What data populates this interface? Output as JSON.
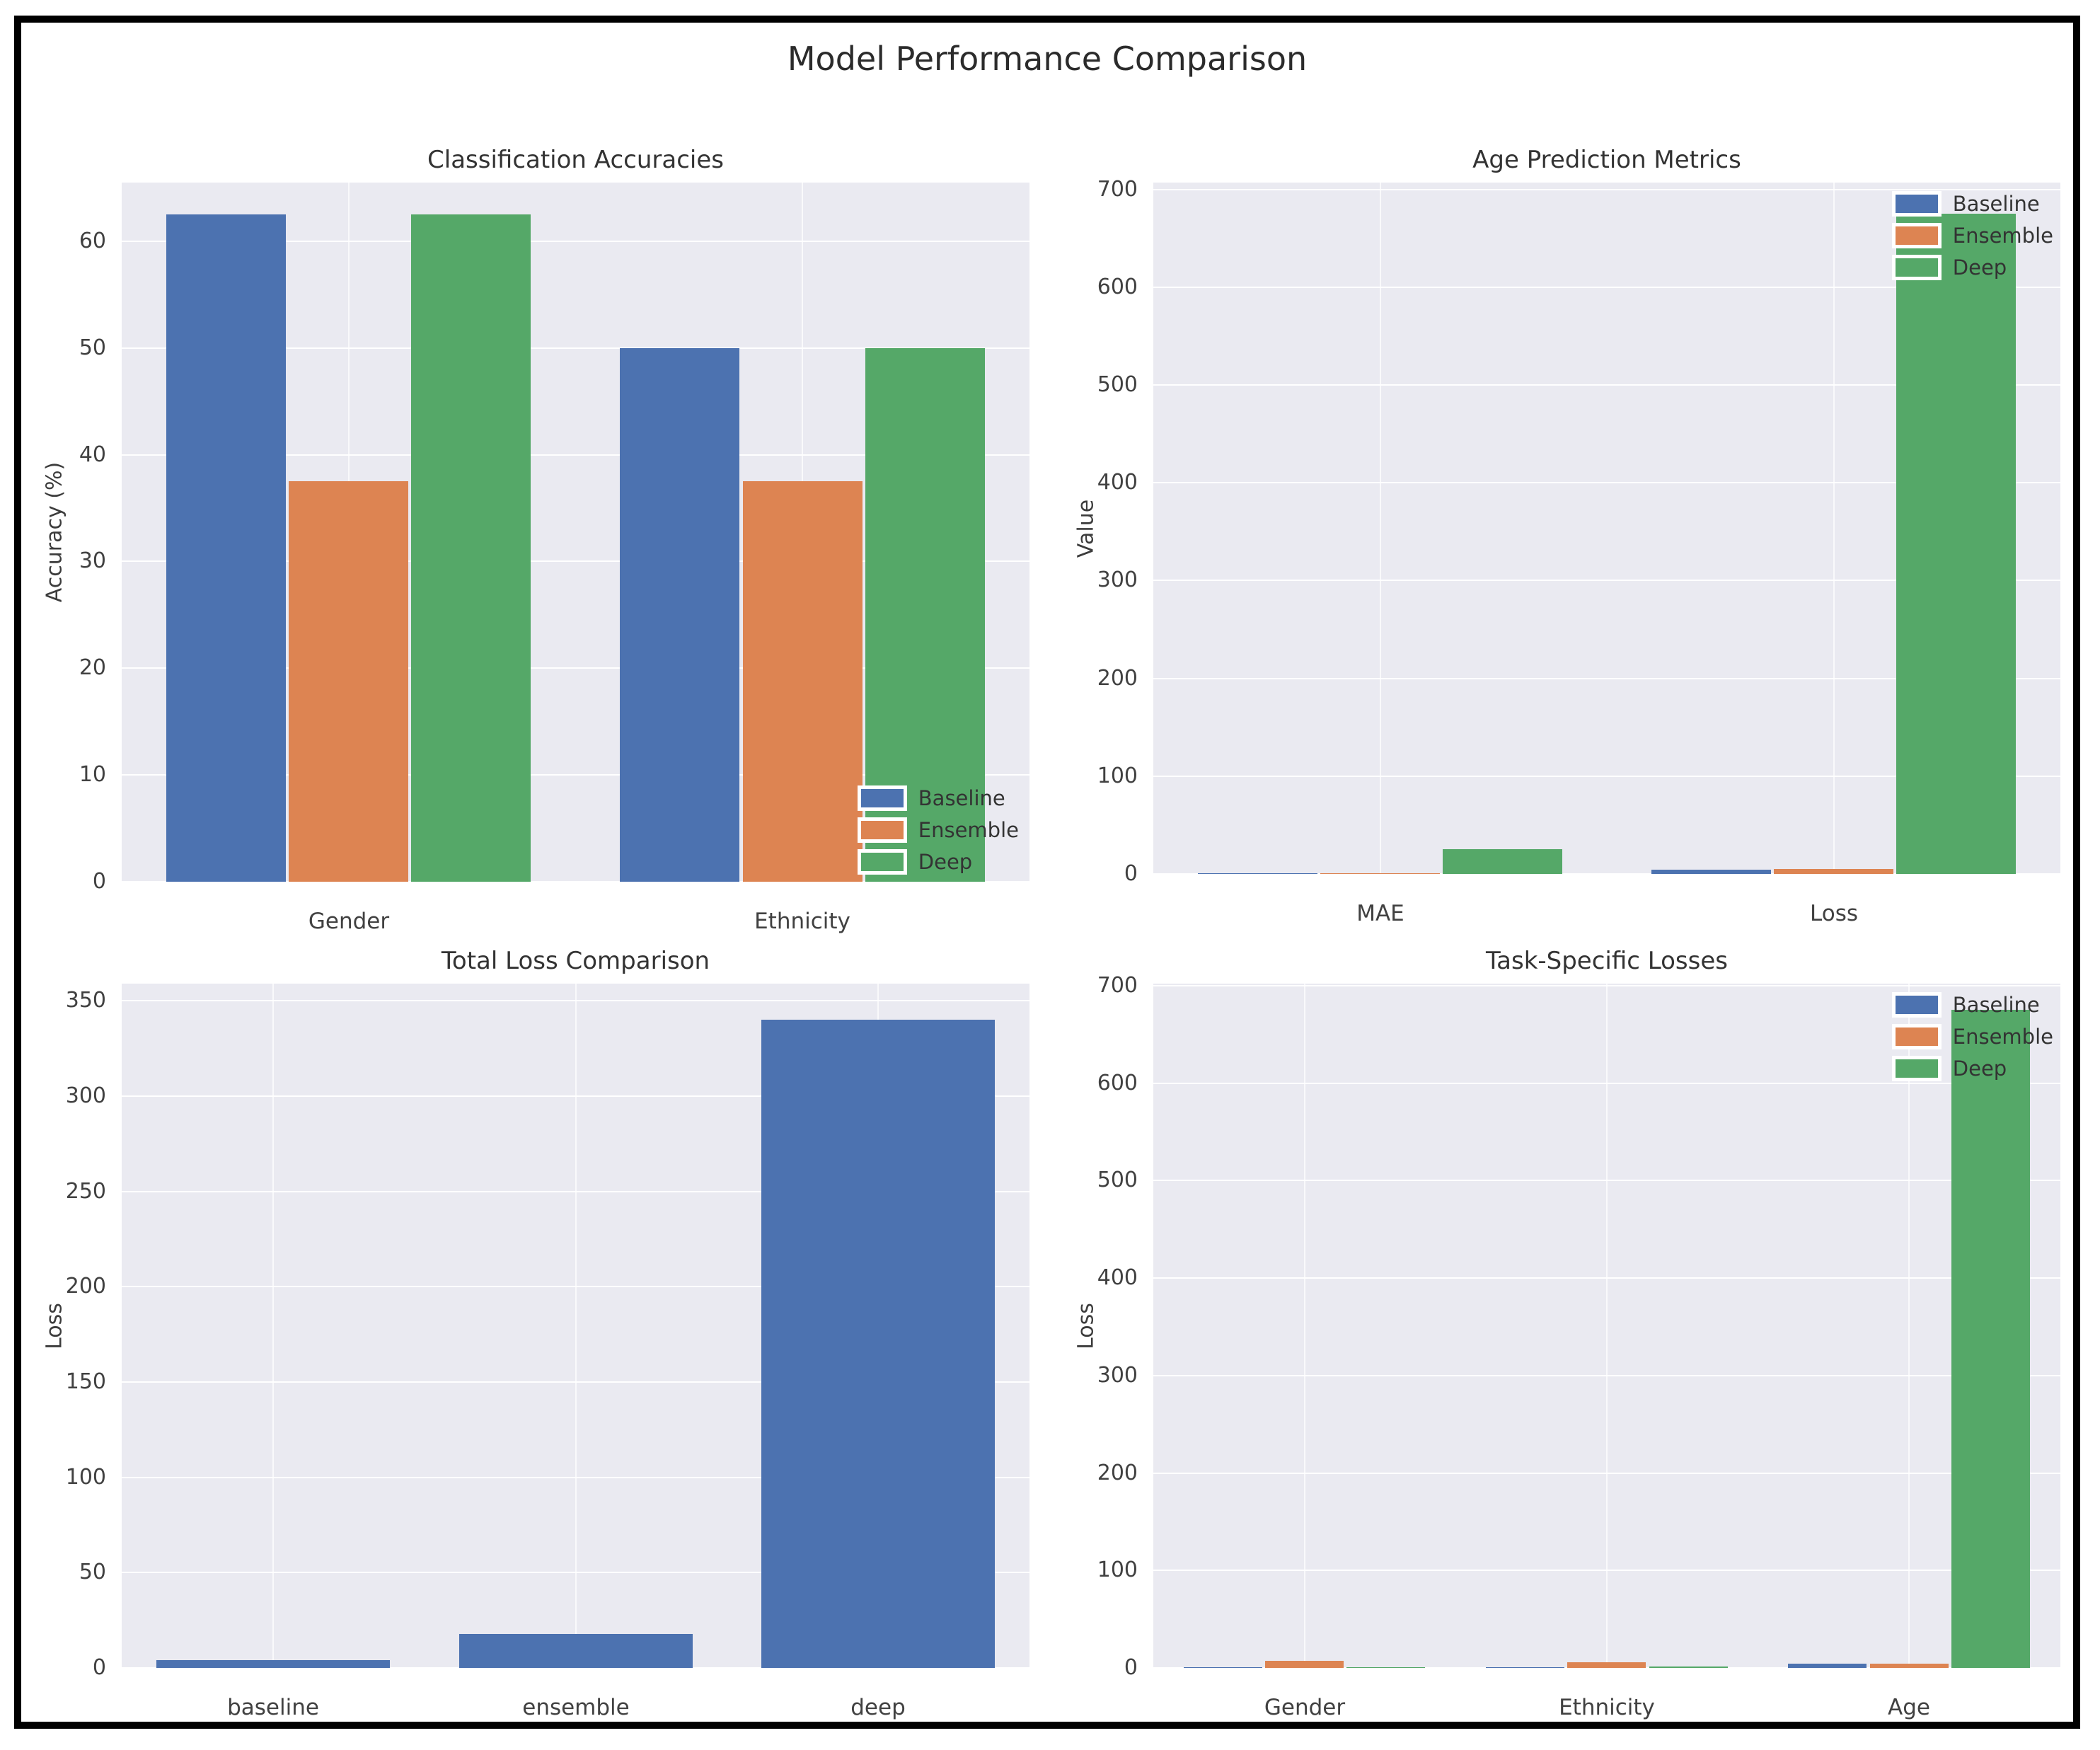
{
  "figure": {
    "title": "Model Performance Comparison"
  },
  "style": {
    "figure_background": "#FFFFFF",
    "frame_color": "#000000",
    "plot_background": "#EAEAF1",
    "grid_color": "#FFFFFF",
    "title_color": "#2B2B2B",
    "tick_color": "#414141",
    "series_colors": {
      "baseline": "#4C72B0",
      "ensemble": "#DD8452",
      "deep": "#55A868"
    }
  },
  "chart_data": [
    {
      "id": "classification-accuracies",
      "type": "bar",
      "title": "Classification Accuracies",
      "ylabel": "Accuracy (%)",
      "xlabel": "",
      "categories": [
        "Gender",
        "Ethnicity"
      ],
      "series": [
        {
          "name": "Baseline",
          "color": "#4C72B0",
          "values": [
            62.5,
            50.0
          ]
        },
        {
          "name": "Ensemble",
          "color": "#DD8452",
          "values": [
            37.5,
            37.5
          ]
        },
        {
          "name": "Deep",
          "color": "#55A868",
          "values": [
            62.5,
            50.0
          ]
        }
      ],
      "ylim": [
        0,
        65.5
      ],
      "yticks": [
        0,
        10,
        20,
        30,
        40,
        50,
        60
      ],
      "grid": true,
      "legend": {
        "visible": true,
        "location": "lower-right",
        "labels": [
          "Baseline",
          "Ensemble",
          "Deep"
        ]
      }
    },
    {
      "id": "age-prediction-metrics",
      "type": "bar",
      "title": "Age Prediction Metrics",
      "ylabel": "Value",
      "xlabel": "",
      "categories": [
        "MAE",
        "Loss"
      ],
      "series": [
        {
          "name": "Baseline",
          "color": "#4C72B0",
          "values": [
            1.0,
            4.5
          ]
        },
        {
          "name": "Ensemble",
          "color": "#DD8452",
          "values": [
            1.0,
            5.0
          ]
        },
        {
          "name": "Deep",
          "color": "#55A868",
          "values": [
            25.0,
            675.0
          ]
        }
      ],
      "ylim": [
        0,
        707
      ],
      "yticks": [
        0,
        100,
        200,
        300,
        400,
        500,
        600,
        700
      ],
      "grid": true,
      "legend": {
        "visible": true,
        "location": "upper-right",
        "labels": [
          "Baseline",
          "Ensemble",
          "Deep"
        ]
      }
    },
    {
      "id": "total-loss-comparison",
      "type": "bar",
      "title": "Total Loss Comparison",
      "ylabel": "Loss",
      "xlabel": "",
      "categories": [
        "baseline",
        "ensemble",
        "deep"
      ],
      "series": [
        {
          "name": "Total Loss",
          "color": "#4C72B0",
          "values": [
            4.0,
            18.0,
            340.0
          ]
        }
      ],
      "ylim": [
        0,
        359
      ],
      "yticks": [
        0,
        50,
        100,
        150,
        200,
        250,
        300,
        350
      ],
      "grid": true,
      "legend": {
        "visible": false,
        "location": "none",
        "labels": []
      }
    },
    {
      "id": "task-specific-losses",
      "type": "bar",
      "title": "Task-Specific Losses",
      "ylabel": "Loss",
      "xlabel": "",
      "categories": [
        "Gender",
        "Ethnicity",
        "Age"
      ],
      "series": [
        {
          "name": "Baseline",
          "color": "#4C72B0",
          "values": [
            0.7,
            1.0,
            4.0
          ]
        },
        {
          "name": "Ensemble",
          "color": "#DD8452",
          "values": [
            7.0,
            6.0,
            4.0
          ]
        },
        {
          "name": "Deep",
          "color": "#55A868",
          "values": [
            0.7,
            1.2,
            675.0
          ]
        }
      ],
      "ylim": [
        0,
        702
      ],
      "yticks": [
        0,
        100,
        200,
        300,
        400,
        500,
        600,
        700
      ],
      "grid": true,
      "legend": {
        "visible": true,
        "location": "upper-right",
        "labels": [
          "Baseline",
          "Ensemble",
          "Deep"
        ]
      }
    }
  ]
}
